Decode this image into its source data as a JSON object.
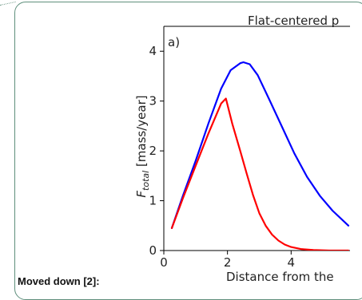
{
  "chart_data": {
    "type": "line",
    "title": "Flat-centered p",
    "panel_label": "a)",
    "xlabel": "Distance from the",
    "ylabel_main": "F",
    "ylabel_sub": "total",
    "ylabel_unit": "[mass/year]",
    "xlim": [
      0,
      5.8
    ],
    "ylim": [
      0,
      4.5
    ],
    "x_ticks": [
      0,
      2,
      4
    ],
    "y_ticks": [
      0,
      1,
      2,
      3,
      4
    ],
    "grid": false,
    "series": [
      {
        "color": "#0000ff",
        "x": [
          0.25,
          0.6,
          1.0,
          1.4,
          1.8,
          2.1,
          2.4,
          2.5,
          2.7,
          2.95,
          3.3,
          3.7,
          4.1,
          4.5,
          4.9,
          5.3,
          5.8
        ],
        "y": [
          0.45,
          1.1,
          1.8,
          2.55,
          3.25,
          3.62,
          3.76,
          3.78,
          3.74,
          3.52,
          3.05,
          2.5,
          1.95,
          1.48,
          1.1,
          0.8,
          0.5
        ]
      },
      {
        "color": "#ff0000",
        "x": [
          0.25,
          0.6,
          1.0,
          1.4,
          1.8,
          1.95,
          2.15,
          2.4,
          2.6,
          2.8,
          3.0,
          3.2,
          3.4,
          3.6,
          3.8,
          4.0,
          4.3,
          4.7,
          5.2,
          5.8
        ],
        "y": [
          0.45,
          1.05,
          1.7,
          2.35,
          2.95,
          3.05,
          2.55,
          2.0,
          1.55,
          1.12,
          0.75,
          0.5,
          0.32,
          0.2,
          0.12,
          0.07,
          0.03,
          0.01,
          0.0,
          0.0
        ]
      }
    ]
  },
  "note": {
    "text": "Moved down [2]:"
  }
}
